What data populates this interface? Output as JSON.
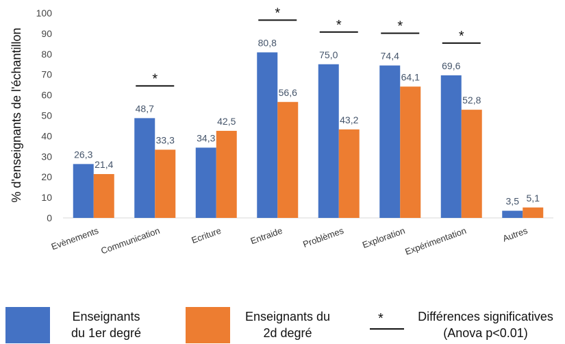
{
  "chart_data": {
    "type": "bar",
    "ylabel": "% d'enseignants de l'échantillon",
    "ylim": [
      0,
      100
    ],
    "yticks": [
      "0",
      "10",
      "20",
      "30",
      "40",
      "50",
      "60",
      "70",
      "80",
      "90",
      "100"
    ],
    "categories": [
      "Evènements",
      "Communication",
      "Ecriture",
      "Entraide",
      "Problèmes",
      "Exploration",
      "Expérimentation",
      "Autres"
    ],
    "series": [
      {
        "name": "Enseignants du 1er degré",
        "color": "#4472C4",
        "values": [
          26.3,
          48.7,
          34.3,
          80.8,
          75.0,
          74.4,
          69.6,
          3.5
        ],
        "labels": [
          "26,3",
          "48,7",
          "34,3",
          "80,8",
          "75,0",
          "74,4",
          "69,6",
          "3,5"
        ]
      },
      {
        "name": "Enseignants du 2d degré",
        "color": "#ED7D31",
        "values": [
          21.4,
          33.3,
          42.5,
          56.6,
          43.2,
          64.1,
          52.8,
          5.1
        ],
        "labels": [
          "21,4",
          "33,3",
          "42,5",
          "56,6",
          "43,2",
          "64,1",
          "52,8",
          "5,1"
        ]
      }
    ],
    "significant": [
      false,
      true,
      false,
      true,
      true,
      true,
      true,
      false
    ],
    "significance_marker": "*",
    "grid": false,
    "legend_position": "bottom"
  },
  "legend": {
    "series1_line1": "Enseignants",
    "series1_line2": "du 1er degré",
    "series2_line1": "Enseignants du",
    "series2_line2": "2d degré",
    "sig_marker": "*",
    "sig_line1": "Différences significatives",
    "sig_line2": "(Anova p<0.01)"
  },
  "colors": {
    "series1": "#4472C4",
    "series2": "#ED7D31",
    "label": "#44546A",
    "axis_text": "#595959"
  }
}
